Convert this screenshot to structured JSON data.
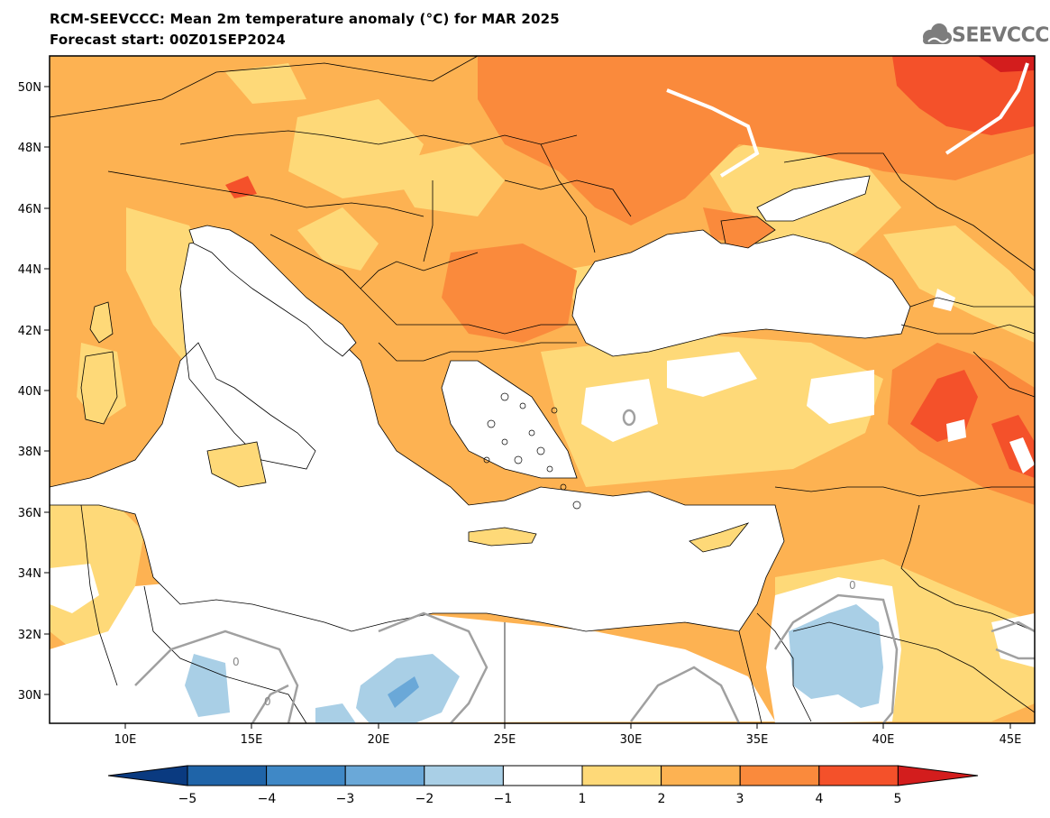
{
  "header": {
    "title": "RCM-SEEVCCC: Mean 2m temperature anomaly (°C) for MAR 2025",
    "subtitle": "Forecast start: 00Z01SEP2024",
    "logo_text": "SEEVCCC"
  },
  "map": {
    "x_ticks": [
      "10E",
      "15E",
      "20E",
      "25E",
      "30E",
      "35E",
      "40E",
      "45E"
    ],
    "y_ticks": [
      "50N",
      "48N",
      "46N",
      "44N",
      "42N",
      "40N",
      "38N",
      "36N",
      "34N",
      "32N",
      "30N"
    ],
    "contour_label": "0"
  },
  "colorbar": {
    "labels": [
      "−5",
      "−4",
      "−3",
      "−2",
      "−1",
      "1",
      "2",
      "3",
      "4",
      "5"
    ],
    "colors": [
      "#0a3a80",
      "#1f64a8",
      "#3f88c6",
      "#6aa8d8",
      "#a9cfe6",
      "#ffffff",
      "#fed978",
      "#fdb252",
      "#fa8a3c",
      "#f4512a",
      "#d31d1d"
    ]
  }
}
